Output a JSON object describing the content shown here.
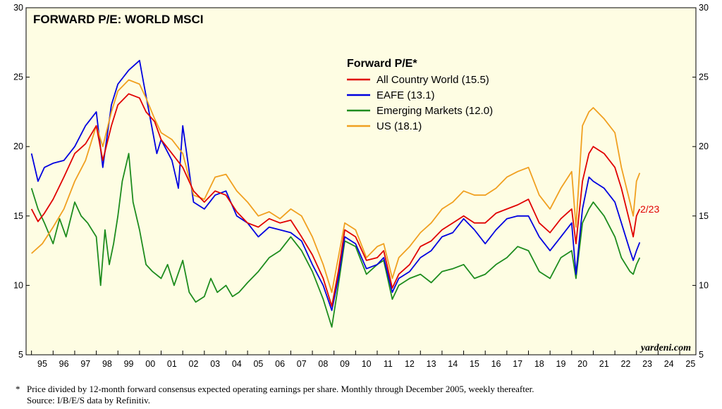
{
  "colors": {
    "plot_bg": "#fefde3",
    "all_country_world": "#e00000",
    "eafe": "#0000e0",
    "emerging_markets": "#1e8c1e",
    "us": "#f0a020",
    "annotation": "#e00000"
  },
  "footnote": {
    "line1": "Price divided by 12-month forward consensus expected operating earnings per share. Monthly through December 2005, weekly thereafter.",
    "line2": "Source: I/B/E/S data by Refinitiv.",
    "marker": "*"
  },
  "chart_data": {
    "type": "line",
    "title": "FORWARD P/E: WORLD MSCI",
    "legend_title": "Forward P/E*",
    "legend_position": "top-center",
    "brand": "yardeni.com",
    "annotation": "2/23",
    "ylim": [
      5,
      30
    ],
    "y_ticks": [
      "5",
      "10",
      "15",
      "20",
      "25",
      "30"
    ],
    "xlim": [
      1994.75,
      2025.75
    ],
    "x_tick_labels": [
      "95",
      "96",
      "97",
      "98",
      "99",
      "00",
      "01",
      "02",
      "03",
      "04",
      "05",
      "06",
      "07",
      "08",
      "09",
      "10",
      "11",
      "12",
      "13",
      "14",
      "15",
      "16",
      "17",
      "18",
      "19",
      "20",
      "21",
      "22",
      "23",
      "24",
      "25"
    ],
    "grid": false,
    "series": [
      {
        "name": "All Country World (15.5)",
        "color_key": "all_country_world",
        "x": [
          1995.0,
          1995.3,
          1995.6,
          1996.0,
          1996.5,
          1997.0,
          1997.5,
          1998.0,
          1998.3,
          1998.7,
          1999.0,
          1999.5,
          2000.0,
          2000.3,
          2000.7,
          2001.0,
          2001.5,
          2002.0,
          2002.5,
          2003.0,
          2003.5,
          2004.0,
          2004.5,
          2005.0,
          2005.5,
          2006.0,
          2006.5,
          2007.0,
          2007.5,
          2008.0,
          2008.5,
          2008.9,
          2009.2,
          2009.5,
          2010.0,
          2010.5,
          2011.0,
          2011.3,
          2011.7,
          2012.0,
          2012.5,
          2013.0,
          2013.5,
          2014.0,
          2014.5,
          2015.0,
          2015.5,
          2016.0,
          2016.5,
          2017.0,
          2017.5,
          2018.0,
          2018.5,
          2019.0,
          2019.5,
          2020.0,
          2020.2,
          2020.5,
          2020.8,
          2021.0,
          2021.5,
          2022.0,
          2022.3,
          2022.7,
          2022.85,
          2023.0,
          2023.15
        ],
        "values": [
          15.5,
          14.6,
          15.2,
          16.2,
          17.8,
          19.5,
          20.2,
          21.5,
          19.0,
          21.5,
          23.0,
          23.8,
          23.5,
          22.5,
          21.8,
          20.5,
          19.5,
          18.5,
          16.8,
          16.0,
          16.8,
          16.5,
          15.3,
          14.5,
          14.2,
          14.8,
          14.5,
          14.7,
          13.5,
          12.2,
          10.5,
          8.5,
          11.0,
          14.0,
          13.5,
          11.8,
          12.0,
          12.5,
          9.8,
          10.8,
          11.5,
          12.8,
          13.2,
          14.0,
          14.5,
          15.0,
          14.5,
          14.5,
          15.2,
          15.5,
          15.8,
          16.2,
          14.5,
          13.8,
          14.8,
          15.5,
          13.0,
          17.5,
          19.5,
          20.0,
          19.5,
          18.5,
          17.0,
          14.5,
          13.5,
          15.0,
          15.5
        ]
      },
      {
        "name": "EAFE (13.1)",
        "color_key": "eafe",
        "x": [
          1995.0,
          1995.3,
          1995.6,
          1996.0,
          1996.5,
          1997.0,
          1997.5,
          1998.0,
          1998.3,
          1998.7,
          1999.0,
          1999.5,
          2000.0,
          2000.2,
          2000.5,
          2000.8,
          2001.0,
          2001.5,
          2001.8,
          2002.0,
          2002.5,
          2003.0,
          2003.5,
          2004.0,
          2004.5,
          2005.0,
          2005.5,
          2006.0,
          2006.5,
          2007.0,
          2007.5,
          2008.0,
          2008.5,
          2008.9,
          2009.2,
          2009.5,
          2010.0,
          2010.5,
          2011.0,
          2011.3,
          2011.7,
          2012.0,
          2012.5,
          2013.0,
          2013.5,
          2014.0,
          2014.5,
          2015.0,
          2015.5,
          2016.0,
          2016.5,
          2017.0,
          2017.5,
          2018.0,
          2018.5,
          2019.0,
          2019.5,
          2020.0,
          2020.2,
          2020.5,
          2020.8,
          2021.0,
          2021.5,
          2022.0,
          2022.3,
          2022.7,
          2022.85,
          2023.0,
          2023.15
        ],
        "values": [
          19.5,
          17.5,
          18.5,
          18.8,
          19.0,
          20.0,
          21.5,
          22.5,
          18.5,
          23.0,
          24.5,
          25.5,
          26.2,
          24.5,
          22.0,
          19.5,
          20.5,
          19.0,
          17.0,
          21.5,
          16.0,
          15.5,
          16.5,
          16.8,
          15.0,
          14.5,
          13.5,
          14.2,
          14.0,
          13.8,
          13.2,
          11.5,
          10.0,
          8.2,
          10.5,
          13.5,
          13.0,
          11.2,
          11.5,
          12.0,
          9.5,
          10.5,
          11.0,
          12.0,
          12.5,
          13.5,
          13.8,
          14.8,
          14.0,
          13.0,
          14.0,
          14.8,
          15.0,
          15.0,
          13.5,
          12.5,
          13.5,
          14.5,
          10.8,
          15.5,
          17.8,
          17.5,
          17.0,
          16.0,
          14.5,
          12.5,
          11.8,
          12.5,
          13.1
        ]
      },
      {
        "name": "Emerging Markets (12.0)",
        "color_key": "emerging_markets",
        "x": [
          1995.0,
          1995.3,
          1995.6,
          1996.0,
          1996.3,
          1996.6,
          1997.0,
          1997.3,
          1997.6,
          1998.0,
          1998.2,
          1998.4,
          1998.6,
          1998.8,
          1999.0,
          1999.2,
          1999.5,
          1999.7,
          2000.0,
          2000.3,
          2000.6,
          2001.0,
          2001.3,
          2001.6,
          2002.0,
          2002.3,
          2002.6,
          2003.0,
          2003.3,
          2003.6,
          2004.0,
          2004.3,
          2004.6,
          2005.0,
          2005.5,
          2006.0,
          2006.5,
          2007.0,
          2007.5,
          2008.0,
          2008.5,
          2008.9,
          2009.2,
          2009.5,
          2010.0,
          2010.5,
          2011.0,
          2011.3,
          2011.7,
          2012.0,
          2012.5,
          2013.0,
          2013.5,
          2014.0,
          2014.5,
          2015.0,
          2015.5,
          2016.0,
          2016.5,
          2017.0,
          2017.5,
          2018.0,
          2018.5,
          2019.0,
          2019.5,
          2020.0,
          2020.2,
          2020.5,
          2020.8,
          2021.0,
          2021.5,
          2022.0,
          2022.3,
          2022.7,
          2022.85,
          2023.0,
          2023.15
        ],
        "values": [
          17.0,
          15.5,
          14.5,
          13.0,
          14.8,
          13.5,
          16.0,
          15.0,
          14.5,
          13.5,
          10.0,
          14.0,
          11.5,
          13.0,
          15.0,
          17.5,
          19.5,
          16.0,
          14.0,
          11.5,
          11.0,
          10.5,
          11.5,
          10.0,
          11.8,
          9.5,
          8.8,
          9.2,
          10.5,
          9.5,
          10.0,
          9.2,
          9.5,
          10.2,
          11.0,
          12.0,
          12.5,
          13.5,
          12.5,
          11.0,
          9.0,
          7.0,
          10.0,
          13.2,
          12.8,
          10.8,
          11.5,
          11.8,
          9.0,
          10.0,
          10.5,
          10.8,
          10.2,
          11.0,
          11.2,
          11.5,
          10.5,
          10.8,
          11.5,
          12.0,
          12.8,
          12.5,
          11.0,
          10.5,
          12.0,
          12.5,
          10.5,
          14.5,
          15.5,
          16.0,
          15.0,
          13.5,
          12.0,
          11.0,
          10.8,
          11.5,
          12.0
        ]
      },
      {
        "name": "US (18.1)",
        "color_key": "us",
        "x": [
          1995.0,
          1995.5,
          1996.0,
          1996.5,
          1997.0,
          1997.5,
          1998.0,
          1998.3,
          1998.7,
          1999.0,
          1999.5,
          2000.0,
          2000.3,
          2000.7,
          2001.0,
          2001.5,
          2002.0,
          2002.5,
          2003.0,
          2003.5,
          2004.0,
          2004.5,
          2005.0,
          2005.5,
          2006.0,
          2006.5,
          2007.0,
          2007.5,
          2008.0,
          2008.5,
          2008.9,
          2009.2,
          2009.5,
          2010.0,
          2010.5,
          2011.0,
          2011.3,
          2011.7,
          2012.0,
          2012.5,
          2013.0,
          2013.5,
          2014.0,
          2014.5,
          2015.0,
          2015.5,
          2016.0,
          2016.5,
          2017.0,
          2017.5,
          2018.0,
          2018.5,
          2019.0,
          2019.5,
          2020.0,
          2020.2,
          2020.5,
          2020.8,
          2021.0,
          2021.5,
          2022.0,
          2022.3,
          2022.7,
          2022.85,
          2023.0,
          2023.15
        ],
        "values": [
          12.3,
          13.0,
          14.2,
          15.5,
          17.5,
          19.0,
          21.5,
          20.0,
          22.5,
          24.0,
          24.8,
          24.5,
          23.5,
          22.0,
          21.0,
          20.5,
          19.5,
          16.5,
          16.2,
          17.8,
          18.0,
          16.8,
          16.0,
          15.0,
          15.3,
          14.8,
          15.5,
          15.0,
          13.5,
          11.5,
          9.5,
          12.0,
          14.5,
          14.0,
          12.0,
          12.8,
          13.0,
          10.5,
          12.0,
          12.8,
          13.8,
          14.5,
          15.5,
          16.0,
          16.8,
          16.5,
          16.5,
          17.0,
          17.8,
          18.2,
          18.5,
          16.5,
          15.5,
          17.0,
          18.2,
          14.2,
          21.5,
          22.5,
          22.8,
          22.0,
          21.0,
          18.5,
          16.0,
          15.0,
          17.5,
          18.1
        ]
      }
    ]
  }
}
